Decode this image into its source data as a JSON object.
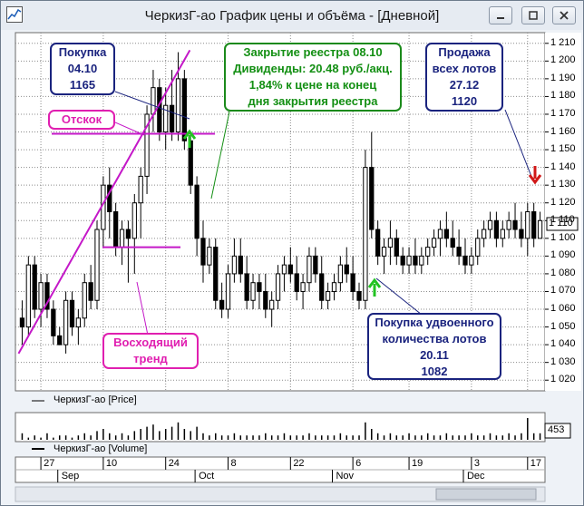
{
  "window": {
    "title": "ЧеркизГ-ао График цены и объёма - [Дневной]",
    "buttons": [
      "minimize",
      "restore",
      "close"
    ]
  },
  "annotations": {
    "buy1": {
      "lines": [
        "Покупка",
        "04.10",
        "1165"
      ],
      "color": "#1a237e"
    },
    "registry": {
      "lines": [
        "Закрытие реестра 08.10",
        "Дивиденды: 20.48 руб./акц.",
        "1,84% к цене на конец",
        "дня закрытия реестра"
      ],
      "color": "#138f13"
    },
    "sell": {
      "lines": [
        "Продажа",
        "всех лотов",
        "27.12",
        "1120"
      ],
      "color": "#1a237e"
    },
    "bounce": {
      "lines": [
        "Отскок"
      ],
      "color": "#e01fb0"
    },
    "trend": {
      "lines": [
        "Восходящий",
        "тренд"
      ],
      "color": "#e01fb0"
    },
    "buy2": {
      "lines": [
        "Покупка удвоенного",
        "количества лотов",
        "20.11",
        "1082"
      ],
      "color": "#1a237e"
    }
  },
  "legend": {
    "price": "ЧеркизГ-ао [Price]",
    "volume": "ЧеркизГ-ао [Volume]"
  },
  "current_price_tag": "1 110",
  "volume_tag": "453",
  "price_axis_labels": [
    "1 210",
    "1 200",
    "1 190",
    "1 180",
    "1 170",
    "1 160",
    "1 150",
    "1 140",
    "1 130",
    "1 120",
    "1 110",
    "1 100",
    "1 090",
    "1 080",
    "1 070",
    "1 060",
    "1 050",
    "1 040",
    "1 030",
    "1 020"
  ],
  "date_axis": {
    "days": [
      "27",
      "10",
      "24",
      "8",
      "22",
      "6",
      "19",
      "3",
      "17"
    ],
    "months": [
      "Sep",
      "Oct",
      "Nov",
      "Dec"
    ]
  },
  "colors": {
    "up_candle": "#ffffff",
    "down_candle": "#000000",
    "trendline": "#c418c8",
    "grid": "#8c8c8c",
    "buy_arrow": "#22c322",
    "sell_arrow": "#d01818"
  },
  "chart_data": {
    "type": "candlestick",
    "ylim": [
      1015,
      1215
    ],
    "y_ticks": [
      1020,
      1030,
      1040,
      1050,
      1060,
      1070,
      1080,
      1090,
      1100,
      1110,
      1120,
      1130,
      1140,
      1150,
      1160,
      1170,
      1180,
      1190,
      1200,
      1210
    ],
    "current_price": 1110,
    "candles": [
      [
        1055,
        1065,
        1040,
        1050
      ],
      [
        1050,
        1090,
        1045,
        1085
      ],
      [
        1085,
        1090,
        1055,
        1060
      ],
      [
        1060,
        1080,
        1050,
        1075
      ],
      [
        1075,
        1080,
        1055,
        1060
      ],
      [
        1060,
        1065,
        1040,
        1045
      ],
      [
        1045,
        1050,
        1040,
        1040
      ],
      [
        1040,
        1070,
        1035,
        1065
      ],
      [
        1065,
        1070,
        1045,
        1050
      ],
      [
        1050,
        1060,
        1040,
        1055
      ],
      [
        1055,
        1080,
        1050,
        1075
      ],
      [
        1075,
        1085,
        1060,
        1065
      ],
      [
        1065,
        1110,
        1060,
        1105
      ],
      [
        1105,
        1135,
        1095,
        1130
      ],
      [
        1130,
        1140,
        1100,
        1115
      ],
      [
        1115,
        1120,
        1090,
        1095
      ],
      [
        1095,
        1110,
        1085,
        1105
      ],
      [
        1105,
        1110,
        1075,
        1100
      ],
      [
        1100,
        1125,
        1080,
        1120
      ],
      [
        1120,
        1140,
        1100,
        1135
      ],
      [
        1135,
        1175,
        1125,
        1170
      ],
      [
        1170,
        1195,
        1160,
        1185
      ],
      [
        1185,
        1190,
        1155,
        1160
      ],
      [
        1160,
        1185,
        1150,
        1175
      ],
      [
        1175,
        1195,
        1155,
        1160
      ],
      [
        1160,
        1205,
        1155,
        1190
      ],
      [
        1190,
        1195,
        1150,
        1155
      ],
      [
        1155,
        1160,
        1125,
        1130
      ],
      [
        1130,
        1135,
        1090,
        1100
      ],
      [
        1100,
        1110,
        1075,
        1085
      ],
      [
        1085,
        1100,
        1080,
        1095
      ],
      [
        1095,
        1100,
        1060,
        1065
      ],
      [
        1065,
        1075,
        1055,
        1060
      ],
      [
        1060,
        1085,
        1055,
        1080
      ],
      [
        1080,
        1100,
        1075,
        1090
      ],
      [
        1090,
        1100,
        1075,
        1080
      ],
      [
        1080,
        1090,
        1060,
        1065
      ],
      [
        1065,
        1080,
        1060,
        1075
      ],
      [
        1075,
        1080,
        1060,
        1070
      ],
      [
        1070,
        1080,
        1055,
        1060
      ],
      [
        1060,
        1070,
        1050,
        1065
      ],
      [
        1065,
        1085,
        1060,
        1080
      ],
      [
        1080,
        1090,
        1070,
        1085
      ],
      [
        1085,
        1095,
        1075,
        1080
      ],
      [
        1080,
        1090,
        1065,
        1070
      ],
      [
        1070,
        1080,
        1060,
        1075
      ],
      [
        1075,
        1095,
        1070,
        1090
      ],
      [
        1090,
        1095,
        1075,
        1080
      ],
      [
        1080,
        1090,
        1060,
        1065
      ],
      [
        1065,
        1075,
        1060,
        1070
      ],
      [
        1070,
        1080,
        1065,
        1075
      ],
      [
        1075,
        1090,
        1070,
        1085
      ],
      [
        1085,
        1095,
        1075,
        1080
      ],
      [
        1080,
        1090,
        1065,
        1070
      ],
      [
        1070,
        1075,
        1060,
        1065
      ],
      [
        1065,
        1150,
        1060,
        1140
      ],
      [
        1140,
        1160,
        1100,
        1105
      ],
      [
        1105,
        1110,
        1085,
        1090
      ],
      [
        1090,
        1100,
        1080,
        1095
      ],
      [
        1095,
        1110,
        1085,
        1100
      ],
      [
        1100,
        1105,
        1085,
        1090
      ],
      [
        1090,
        1095,
        1080,
        1085
      ],
      [
        1085,
        1095,
        1080,
        1090
      ],
      [
        1090,
        1100,
        1080,
        1085
      ],
      [
        1085,
        1095,
        1080,
        1090
      ],
      [
        1090,
        1100,
        1085,
        1095
      ],
      [
        1095,
        1105,
        1090,
        1100
      ],
      [
        1100,
        1110,
        1090,
        1105
      ],
      [
        1105,
        1115,
        1095,
        1100
      ],
      [
        1100,
        1110,
        1090,
        1095
      ],
      [
        1095,
        1105,
        1085,
        1090
      ],
      [
        1090,
        1100,
        1080,
        1085
      ],
      [
        1085,
        1095,
        1080,
        1090
      ],
      [
        1090,
        1105,
        1085,
        1100
      ],
      [
        1100,
        1110,
        1095,
        1105
      ],
      [
        1105,
        1115,
        1100,
        1110
      ],
      [
        1110,
        1115,
        1095,
        1100
      ],
      [
        1100,
        1110,
        1095,
        1105
      ],
      [
        1105,
        1115,
        1100,
        1110
      ],
      [
        1110,
        1120,
        1100,
        1105
      ],
      [
        1105,
        1115,
        1095,
        1100
      ],
      [
        1100,
        1120,
        1090,
        1115
      ],
      [
        1115,
        1120,
        1095,
        1100
      ],
      [
        1100,
        1115,
        1100,
        1110
      ]
    ],
    "volume": [
      3,
      1,
      2,
      1,
      3,
      1,
      2,
      2,
      1,
      2,
      3,
      2,
      4,
      5,
      3,
      2,
      3,
      2,
      4,
      5,
      6,
      7,
      4,
      5,
      6,
      8,
      5,
      4,
      6,
      3,
      2,
      3,
      2,
      2,
      3,
      2,
      2,
      2,
      2,
      3,
      2,
      2,
      3,
      2,
      2,
      2,
      3,
      2,
      2,
      2,
      2,
      3,
      2,
      2,
      2,
      8,
      5,
      3,
      2,
      3,
      2,
      2,
      3,
      2,
      2,
      3,
      2,
      2,
      3,
      2,
      2,
      2,
      3,
      2,
      2,
      3,
      2,
      2,
      3,
      2,
      3,
      10,
      3,
      3
    ],
    "overlays": {
      "trendline": [
        [
          1035,
          0
        ],
        [
          1200,
          26
        ]
      ],
      "bounce_level": 1159,
      "support_level": 1095
    },
    "signals": [
      {
        "type": "buy",
        "date": "04.10",
        "price": 1165
      },
      {
        "type": "buy",
        "date": "20.11",
        "price": 1082
      },
      {
        "type": "sell",
        "date": "27.12",
        "price": 1120
      }
    ]
  }
}
